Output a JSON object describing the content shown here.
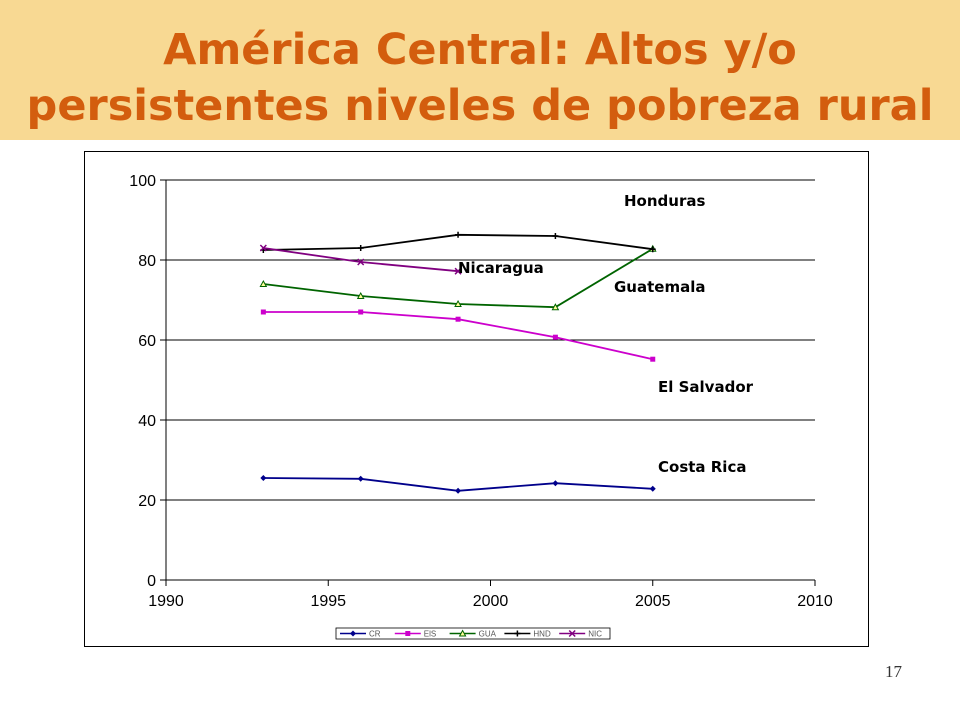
{
  "slide": {
    "title_line1": "América Central: Altos y/o",
    "title_line2": "persistentes niveles de pobreza rural",
    "page_number": "17"
  },
  "colors": {
    "title_band": "#f8d993",
    "title_text": "#d35d0e"
  },
  "chart_data": {
    "type": "line",
    "title": "",
    "xlabel": "",
    "ylabel": "",
    "xlim": [
      1990,
      2010
    ],
    "ylim": [
      0,
      100
    ],
    "x_ticks": [
      1990,
      1995,
      2000,
      2005,
      2010
    ],
    "y_ticks": [
      0,
      20,
      40,
      60,
      80,
      100
    ],
    "grid": "horizontal",
    "legend_position": "bottom",
    "series": [
      {
        "name": "CR",
        "label": "Costa Rica",
        "color": "#00008b",
        "marker": "diamond",
        "x": [
          1993,
          1996,
          1999,
          2002,
          2005
        ],
        "values": [
          25.5,
          25.3,
          22.3,
          24.2,
          22.8
        ]
      },
      {
        "name": "ElS",
        "label": "El Salvador",
        "color": "#cc00cc",
        "marker": "square",
        "x": [
          1993,
          1996,
          1999,
          2002,
          2005
        ],
        "values": [
          67,
          67,
          65.2,
          60.7,
          55.2
        ]
      },
      {
        "name": "GUA",
        "label": "Guatemala",
        "color": "#006400",
        "marker": "triangle",
        "x": [
          1993,
          1996,
          1999,
          2002,
          2005
        ],
        "values": [
          74,
          71,
          69,
          68.2,
          82.8
        ]
      },
      {
        "name": "HND",
        "label": "Honduras",
        "color": "#000000",
        "marker": "cross",
        "x": [
          1993,
          1996,
          1999,
          2002,
          2005
        ],
        "values": [
          82.5,
          83,
          86.3,
          86,
          82.7
        ]
      },
      {
        "name": "NIC",
        "label": "Nicaragua",
        "color": "#800080",
        "marker": "x",
        "x": [
          1993,
          1996,
          1999
        ],
        "values": [
          83,
          79.5,
          77.2
        ]
      }
    ]
  }
}
